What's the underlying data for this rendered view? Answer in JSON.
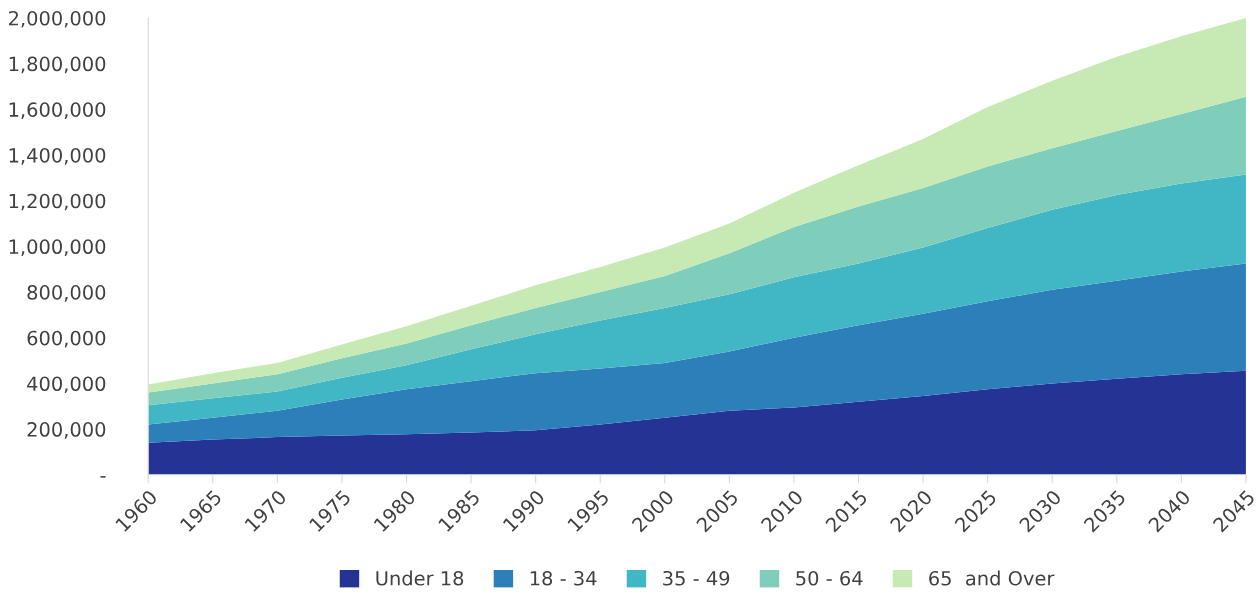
{
  "chart_data": {
    "type": "area",
    "stacked": true,
    "x": [
      1960,
      1965,
      1970,
      1975,
      1980,
      1985,
      1990,
      1995,
      2000,
      2005,
      2010,
      2015,
      2020,
      2025,
      2030,
      2035,
      2040,
      2045
    ],
    "xlim": [
      1960,
      2045
    ],
    "xticks": [
      1960,
      1965,
      1970,
      1975,
      1980,
      1985,
      1990,
      1995,
      2000,
      2005,
      2010,
      2015,
      2020,
      2025,
      2030,
      2035,
      2040,
      2045
    ],
    "ylim": [
      0,
      2000000
    ],
    "yticks": [
      {
        "value": 0,
        "label": "-"
      },
      {
        "value": 200000,
        "label": "200,000"
      },
      {
        "value": 400000,
        "label": "400,000"
      },
      {
        "value": 600000,
        "label": "600,000"
      },
      {
        "value": 800000,
        "label": "800,000"
      },
      {
        "value": 1000000,
        "label": "1,000,000"
      },
      {
        "value": 1200000,
        "label": "1,200,000"
      },
      {
        "value": 1400000,
        "label": "1,400,000"
      },
      {
        "value": 1600000,
        "label": "1,600,000"
      },
      {
        "value": 1800000,
        "label": "1,800,000"
      },
      {
        "value": 2000000,
        "label": "2,000,000"
      }
    ],
    "grid": false,
    "legend": "bottom",
    "series": [
      {
        "name": "Under 18",
        "color": "#253494",
        "values": [
          140000,
          155000,
          165000,
          172000,
          178000,
          185000,
          195000,
          220000,
          250000,
          280000,
          295000,
          320000,
          345000,
          375000,
          400000,
          420000,
          440000,
          455000
        ]
      },
      {
        "name": "18 - 34",
        "color": "#2c7fb8",
        "values": [
          80000,
          95000,
          115000,
          158000,
          197000,
          225000,
          250000,
          245000,
          240000,
          260000,
          305000,
          335000,
          360000,
          385000,
          410000,
          430000,
          450000,
          470000
        ]
      },
      {
        "name": "35 - 49",
        "color": "#41b6c4",
        "values": [
          85000,
          85000,
          85000,
          95000,
          105000,
          140000,
          170000,
          210000,
          240000,
          250000,
          265000,
          270000,
          290000,
          320000,
          350000,
          375000,
          385000,
          390000
        ]
      },
      {
        "name": "50 - 64",
        "color": "#7fcdbb",
        "values": [
          55000,
          65000,
          75000,
          85000,
          95000,
          105000,
          115000,
          125000,
          140000,
          180000,
          220000,
          250000,
          260000,
          270000,
          270000,
          280000,
          305000,
          340000
        ]
      },
      {
        "name": "65  and Over",
        "color": "#c7e9b4",
        "values": [
          35000,
          45000,
          50000,
          60000,
          75000,
          85000,
          100000,
          110000,
          125000,
          130000,
          150000,
          180000,
          215000,
          260000,
          295000,
          325000,
          340000,
          345000
        ]
      }
    ]
  }
}
